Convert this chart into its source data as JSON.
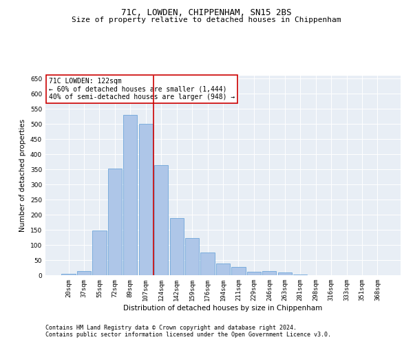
{
  "title": "71C, LOWDEN, CHIPPENHAM, SN15 2BS",
  "subtitle": "Size of property relative to detached houses in Chippenham",
  "xlabel": "Distribution of detached houses by size in Chippenham",
  "ylabel": "Number of detached properties",
  "footnote1": "Contains HM Land Registry data © Crown copyright and database right 2024.",
  "footnote2": "Contains public sector information licensed under the Open Government Licence v3.0.",
  "bar_labels": [
    "20sqm",
    "37sqm",
    "55sqm",
    "72sqm",
    "89sqm",
    "107sqm",
    "124sqm",
    "142sqm",
    "159sqm",
    "176sqm",
    "194sqm",
    "211sqm",
    "229sqm",
    "246sqm",
    "263sqm",
    "281sqm",
    "298sqm",
    "316sqm",
    "333sqm",
    "351sqm",
    "368sqm"
  ],
  "bar_values": [
    5,
    13,
    148,
    352,
    530,
    500,
    365,
    188,
    123,
    75,
    38,
    27,
    11,
    13,
    8,
    2,
    1,
    1,
    0,
    0,
    0
  ],
  "bar_color": "#aec6e8",
  "bar_edge_color": "#5b9bd5",
  "vline_x": 6.0,
  "vline_color": "#cc0000",
  "annotation_text": "71C LOWDEN: 122sqm\n← 60% of detached houses are smaller (1,444)\n40% of semi-detached houses are larger (948) →",
  "annotation_box_color": "#ffffff",
  "annotation_box_edge_color": "#cc0000",
  "ylim": [
    0,
    660
  ],
  "yticks": [
    0,
    50,
    100,
    150,
    200,
    250,
    300,
    350,
    400,
    450,
    500,
    550,
    600,
    650
  ],
  "plot_bg_color": "#e8eef5",
  "title_fontsize": 9,
  "subtitle_fontsize": 8,
  "axis_label_fontsize": 7.5,
  "tick_fontsize": 6.5,
  "annotation_fontsize": 7,
  "footnote_fontsize": 6
}
